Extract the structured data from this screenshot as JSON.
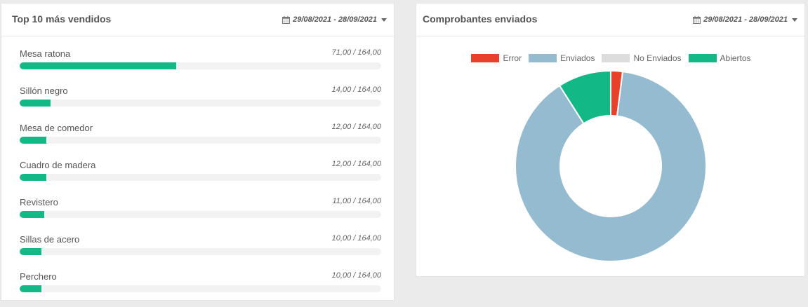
{
  "top_panel": {
    "title": "Top 10 más vendidos",
    "date_range": "29/08/2021 - 28/09/2021",
    "icon": "calendar-icon",
    "products": [
      {
        "name": "Mesa ratona",
        "value": "71,00 / 164,00",
        "fraction": 0.433
      },
      {
        "name": "Sillón negro",
        "value": "14,00 / 164,00",
        "fraction": 0.085
      },
      {
        "name": "Mesa de comedor",
        "value": "12,00 / 164,00",
        "fraction": 0.073
      },
      {
        "name": "Cuadro de madera",
        "value": "12,00 / 164,00",
        "fraction": 0.073
      },
      {
        "name": "Revistero",
        "value": "11,00 / 164,00",
        "fraction": 0.067
      },
      {
        "name": "Sillas de acero",
        "value": "10,00 / 164,00",
        "fraction": 0.061
      },
      {
        "name": "Perchero",
        "value": "10,00 / 164,00",
        "fraction": 0.061
      }
    ],
    "bar_color": "#12b886"
  },
  "comp_panel": {
    "title": "Comprobantes enviados",
    "date_range": "29/08/2021 - 28/09/2021",
    "icon": "calendar-icon"
  },
  "chart_data": {
    "type": "pie",
    "categories": [
      "Error",
      "Enviados",
      "No Enviados",
      "Abiertos"
    ],
    "values": [
      2,
      89,
      0,
      9
    ],
    "colors": [
      "#e8412b",
      "#94bbd0",
      "#dddddd",
      "#12b886"
    ],
    "legend": "top",
    "donut": true
  }
}
